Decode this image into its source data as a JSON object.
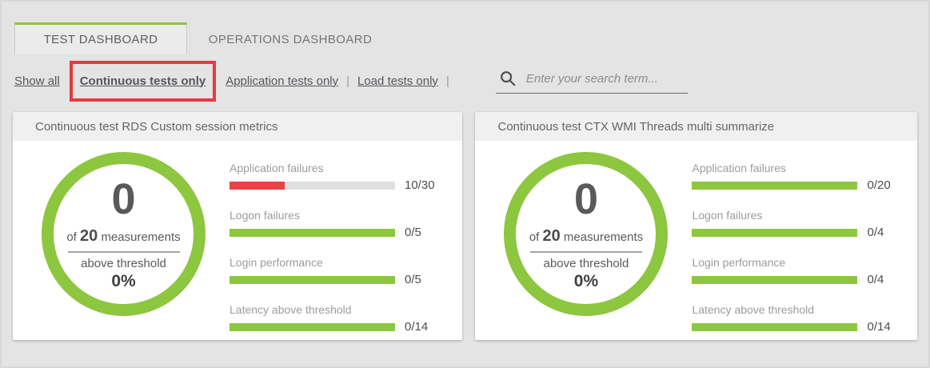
{
  "colors": {
    "green": "#8dc63f",
    "red": "#ee4146",
    "highlight_red": "#e6393f",
    "track_gray": "#e0e0e0",
    "page_bg": "#e4e4e4"
  },
  "tabs": [
    {
      "label": "TEST DASHBOARD",
      "active": true
    },
    {
      "label": "OPERATIONS DASHBOARD",
      "active": false
    }
  ],
  "filters": {
    "separator": "|",
    "items": [
      {
        "label": "Show all",
        "active": false,
        "highlighted": false
      },
      {
        "label": "Continuous tests only",
        "active": true,
        "highlighted": true
      },
      {
        "label": "Application tests only",
        "active": false,
        "highlighted": false
      },
      {
        "label": "Load tests only",
        "active": false,
        "highlighted": false
      }
    ]
  },
  "search": {
    "placeholder": "Enter your search term..."
  },
  "cards": [
    {
      "title": "Continuous test RDS Custom session metrics",
      "donut": {
        "count": "0",
        "of": "of",
        "total": "20",
        "measurements": "measurements",
        "above": "above threshold",
        "percent": "0%",
        "ring_color": "#8dc63f"
      },
      "metrics": [
        {
          "label": "Application failures",
          "value": "10/30",
          "fill_pct": 33.3,
          "bar_color": "#ee4146"
        },
        {
          "label": "Logon failures",
          "value": "0/5",
          "fill_pct": 100,
          "bar_color": "#8dc63f"
        },
        {
          "label": "Login performance",
          "value": "0/5",
          "fill_pct": 100,
          "bar_color": "#8dc63f"
        },
        {
          "label": "Latency above threshold",
          "value": "0/14",
          "fill_pct": 100,
          "bar_color": "#8dc63f"
        }
      ]
    },
    {
      "title": "Continuous test CTX WMI Threads multi summarize",
      "donut": {
        "count": "0",
        "of": "of",
        "total": "20",
        "measurements": "measurements",
        "above": "above threshold",
        "percent": "0%",
        "ring_color": "#8dc63f"
      },
      "metrics": [
        {
          "label": "Application failures",
          "value": "0/20",
          "fill_pct": 100,
          "bar_color": "#8dc63f"
        },
        {
          "label": "Logon failures",
          "value": "0/4",
          "fill_pct": 100,
          "bar_color": "#8dc63f"
        },
        {
          "label": "Login performance",
          "value": "0/4",
          "fill_pct": 100,
          "bar_color": "#8dc63f"
        },
        {
          "label": "Latency above threshold",
          "value": "0/14",
          "fill_pct": 100,
          "bar_color": "#8dc63f"
        }
      ]
    }
  ]
}
